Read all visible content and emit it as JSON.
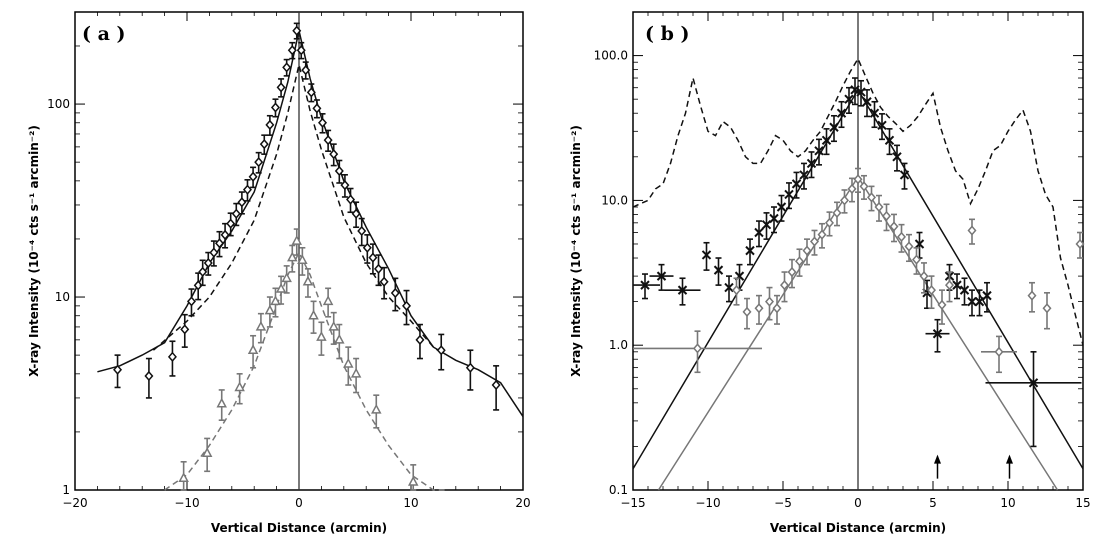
{
  "chart_data": [
    {
      "type": "scatter",
      "panel_label": "( a )",
      "xlabel": "Vertical Distance (arcmin)",
      "ylabel": "X-ray Intensity (10⁻⁴ cts s⁻¹ arcmin⁻²)",
      "xlim": [
        -20,
        20
      ],
      "ylim": [
        1,
        300
      ],
      "yscale": "log",
      "xticks": [
        -20,
        -10,
        0,
        10,
        20
      ],
      "yticks": [
        1,
        10,
        100
      ],
      "vline_x": 0,
      "series": [
        {
          "marker": "diamond",
          "color": "#111111",
          "x": [
            -16.2,
            -13.4,
            -11.3,
            -10.2,
            -9.6,
            -9.0,
            -8.6,
            -8.1,
            -7.6,
            -7.1,
            -6.6,
            -6.1,
            -5.6,
            -5.1,
            -4.6,
            -4.1,
            -3.6,
            -3.1,
            -2.6,
            -2.1,
            -1.6,
            -1.1,
            -0.6,
            -0.2,
            0.2,
            0.6,
            1.1,
            1.6,
            2.1,
            2.6,
            3.1,
            3.6,
            4.1,
            4.6,
            5.1,
            5.6,
            6.1,
            6.6,
            7.1,
            7.6,
            8.6,
            9.6,
            10.8,
            12.7,
            15.3,
            17.6
          ],
          "y": [
            4.2,
            3.9,
            4.9,
            6.8,
            9.5,
            11.5,
            13.5,
            15.0,
            17.0,
            19.0,
            21.0,
            24.0,
            27.0,
            31.0,
            36.0,
            42.0,
            50.0,
            62.0,
            78.0,
            96.0,
            122.0,
            155.0,
            190.0,
            240.0,
            190.0,
            150.0,
            115.0,
            95.0,
            80.0,
            65.0,
            55.0,
            45.0,
            38.0,
            32.0,
            27.0,
            22.0,
            18.0,
            16.0,
            14.0,
            12.0,
            10.5,
            9.0,
            6.0,
            5.3,
            4.3,
            3.5
          ],
          "err": [
            0.8,
            0.9,
            1.0,
            1.3,
            1.5,
            1.8,
            2.0,
            2.0,
            2.5,
            2.8,
            3.0,
            3.2,
            3.5,
            4.0,
            4.5,
            5.0,
            6.0,
            7.0,
            9.0,
            10.0,
            13.0,
            15.0,
            18.0,
            22.0,
            18.0,
            15.0,
            12.0,
            10.0,
            9.0,
            8.0,
            7.0,
            6.0,
            5.0,
            4.5,
            4.0,
            3.5,
            3.0,
            2.8,
            2.5,
            2.2,
            2.0,
            1.8,
            1.2,
            1.1,
            1.0,
            0.9
          ]
        },
        {
          "marker": "triangle",
          "color": "#777777",
          "x": [
            -10.3,
            -8.2,
            -6.9,
            -5.3,
            -4.1,
            -3.4,
            -2.6,
            -2.1,
            -1.6,
            -1.1,
            -0.6,
            -0.2,
            0.3,
            0.8,
            1.3,
            2.0,
            2.6,
            3.1,
            3.6,
            4.4,
            5.1,
            6.9,
            10.2
          ],
          "y": [
            1.15,
            1.55,
            2.8,
            3.4,
            5.3,
            7.0,
            8.5,
            9.5,
            11.0,
            12.5,
            16.0,
            19.5,
            15.5,
            12.0,
            8.0,
            6.2,
            9.5,
            7.0,
            6.0,
            4.5,
            4.0,
            2.6,
            1.1
          ],
          "err": [
            0.25,
            0.3,
            0.5,
            0.6,
            1.0,
            1.2,
            1.5,
            1.6,
            1.8,
            2.0,
            2.5,
            3.0,
            2.5,
            2.0,
            1.5,
            1.2,
            1.6,
            1.3,
            1.2,
            1.0,
            0.8,
            0.5,
            0.25
          ]
        }
      ],
      "curves": [
        {
          "style": "solid",
          "color": "#111111",
          "x": [
            -18,
            -16,
            -14,
            -12,
            -10,
            -8,
            -6,
            -4,
            -2,
            -1,
            0,
            1,
            2,
            4,
            6,
            8,
            10,
            12,
            14,
            16,
            18,
            20
          ],
          "y": [
            4.1,
            4.4,
            5.0,
            5.8,
            9.0,
            15.0,
            22.0,
            35.0,
            80.0,
            130.0,
            240.0,
            135.0,
            85.0,
            40.0,
            23.0,
            14.0,
            8.0,
            5.5,
            4.7,
            4.2,
            3.6,
            2.4
          ]
        },
        {
          "style": "dashed",
          "color": "#111111",
          "x": [
            -13,
            -10,
            -8,
            -6,
            -4,
            -2,
            -1,
            0,
            1,
            2,
            4,
            6,
            8,
            10,
            12,
            13
          ],
          "y": [
            5.3,
            7.5,
            10.0,
            15.0,
            25.0,
            55.0,
            90.0,
            160.0,
            92.0,
            58.0,
            26.0,
            15.0,
            10.0,
            7.5,
            5.5,
            5.0
          ]
        },
        {
          "style": "dashed",
          "color": "#777777",
          "x": [
            -12,
            -10,
            -8,
            -6,
            -4,
            -2,
            -1,
            0,
            1,
            2,
            4,
            6,
            8,
            10,
            12,
            13
          ],
          "y": [
            0.95,
            1.2,
            1.7,
            2.6,
            4.4,
            9.0,
            13.0,
            17.0,
            13.0,
            9.0,
            4.4,
            2.6,
            1.7,
            1.2,
            1.0,
            0.9
          ]
        }
      ]
    },
    {
      "type": "scatter",
      "panel_label": "( b )",
      "xlabel": "Vertical Distance (arcmin)",
      "ylabel": "X-ray Intensity (10⁻⁴ cts s⁻¹ arcmin⁻²)",
      "xlim": [
        -15,
        15
      ],
      "ylim": [
        0.1,
        200
      ],
      "yscale": "log",
      "xticks": [
        -15,
        -10,
        -5,
        0,
        5,
        10,
        15
      ],
      "yticks": [
        0.1,
        1.0,
        10.0,
        100.0
      ],
      "ytick_labels": [
        "0.1",
        "1.0",
        "10.0",
        "100.0"
      ],
      "vline_x": 0,
      "series": [
        {
          "marker": "x",
          "color": "#111111",
          "x": [
            -14.2,
            -13.1,
            -11.7,
            -10.1,
            -9.3,
            -8.6,
            -7.9,
            -7.2,
            -6.6,
            -6.1,
            -5.6,
            -5.1,
            -4.6,
            -4.1,
            -3.6,
            -3.1,
            -2.6,
            -2.1,
            -1.6,
            -1.1,
            -0.6,
            -0.2,
            0.2,
            0.6,
            1.1,
            1.6,
            2.1,
            2.6,
            3.1,
            4.1,
            4.6,
            5.3,
            6.1,
            6.6,
            7.1,
            7.6,
            8.1,
            8.6,
            11.7
          ],
          "y": [
            2.6,
            3.0,
            2.4,
            4.2,
            3.3,
            2.5,
            3.0,
            4.5,
            6.0,
            6.8,
            7.5,
            9.0,
            11.0,
            13.0,
            15.0,
            18.0,
            22.0,
            26.0,
            32.0,
            40.0,
            50.0,
            58.0,
            56.0,
            48.0,
            40.0,
            33.0,
            26.0,
            20.0,
            15.0,
            5.0,
            2.3,
            1.2,
            3.0,
            2.6,
            2.4,
            2.0,
            2.0,
            2.2,
            0.55
          ],
          "err": [
            0.5,
            0.6,
            0.5,
            0.9,
            0.7,
            0.5,
            0.6,
            0.9,
            1.2,
            1.4,
            1.5,
            1.8,
            2.2,
            2.6,
            3.0,
            3.6,
            4.4,
            5.2,
            6.4,
            8.0,
            10.0,
            12.0,
            11.0,
            10.0,
            8.0,
            6.6,
            5.2,
            4.0,
            3.0,
            1.0,
            0.5,
            0.3,
            0.6,
            0.5,
            0.5,
            0.4,
            0.4,
            0.5,
            0.35
          ],
          "xerr": [
            1.0,
            0.8,
            1.2,
            0,
            0,
            0,
            0,
            0,
            0,
            0,
            0,
            0,
            0,
            0,
            0,
            0,
            0,
            0,
            0,
            0,
            0,
            0,
            0,
            0,
            0,
            0,
            0,
            0,
            0,
            0,
            0,
            0.8,
            0,
            0,
            0,
            0,
            0,
            0,
            3.2
          ]
        },
        {
          "marker": "diamond",
          "color": "#777777",
          "x": [
            -10.7,
            -8.1,
            -7.4,
            -6.6,
            -5.9,
            -5.4,
            -4.9,
            -4.4,
            -3.9,
            -3.4,
            -2.9,
            -2.4,
            -1.9,
            -1.4,
            -0.9,
            -0.4,
            0.0,
            0.4,
            0.9,
            1.4,
            1.9,
            2.4,
            2.9,
            3.4,
            3.9,
            4.4,
            4.9,
            5.6,
            6.1,
            7.6,
            9.4,
            11.6,
            12.6,
            14.8
          ],
          "y": [
            0.95,
            2.4,
            1.7,
            1.8,
            2.0,
            1.8,
            2.6,
            3.2,
            3.8,
            4.5,
            5.2,
            5.8,
            7.0,
            8.2,
            10.0,
            12.0,
            14.0,
            12.5,
            10.5,
            9.0,
            7.8,
            6.6,
            5.6,
            4.8,
            3.9,
            3.0,
            2.4,
            1.9,
            2.6,
            6.2,
            0.9,
            2.2,
            1.8,
            5.0
          ],
          "err": [
            0.3,
            0.5,
            0.4,
            0.4,
            0.5,
            0.4,
            0.6,
            0.7,
            0.8,
            0.9,
            1.0,
            1.1,
            1.3,
            1.5,
            1.8,
            2.2,
            2.6,
            2.3,
            2.0,
            1.8,
            1.6,
            1.4,
            1.2,
            1.0,
            0.8,
            0.7,
            0.6,
            0.5,
            0.6,
            1.2,
            0.25,
            0.5,
            0.5,
            1.0
          ],
          "xerr": [
            4.3,
            0,
            0,
            0,
            0,
            0,
            0,
            0,
            0,
            0,
            0,
            0,
            0,
            0,
            0,
            0,
            0,
            0,
            0,
            0,
            0,
            0,
            0,
            0,
            0,
            0,
            0,
            0,
            0,
            0,
            1.2,
            0,
            0,
            0
          ]
        }
      ],
      "curves": [
        {
          "style": "solid",
          "color": "#111111",
          "x": [
            -15,
            0,
            15
          ],
          "y": [
            0.14,
            58.0,
            0.14
          ]
        },
        {
          "style": "solid",
          "color": "#777777",
          "x": [
            -13.3,
            0,
            13.3
          ],
          "y": [
            0.1,
            14.5,
            0.1
          ]
        },
        {
          "style": "dashed",
          "color": "#111111",
          "x": [
            -15,
            -14,
            -13.5,
            -13,
            -12.5,
            -12,
            -11.5,
            -11,
            -10.5,
            -10,
            -9.5,
            -9,
            -8.5,
            -8,
            -7.5,
            -7,
            -6.5,
            -6,
            -5.5,
            -5,
            -4.5,
            -4,
            -3.5,
            -3,
            -2.5,
            -2,
            -1.5,
            -1,
            -0.5,
            0,
            0.5,
            1,
            1.5,
            2,
            2.5,
            3,
            3.5,
            4,
            4.5,
            5,
            5.5,
            6,
            6.5,
            7,
            7.5,
            8,
            8.5,
            9,
            9.5,
            10,
            10.5,
            11,
            11.5,
            12,
            12.5,
            13,
            13.5,
            14,
            14.5,
            15
          ],
          "y": [
            9.0,
            10.0,
            12.0,
            13.0,
            18.0,
            28.0,
            40.0,
            70.0,
            45.0,
            30.0,
            28.0,
            35.0,
            32.0,
            26.0,
            20.0,
            18.0,
            18.0,
            22.0,
            28.0,
            26.0,
            22.0,
            20.0,
            22.0,
            26.0,
            30.0,
            38.0,
            48.0,
            62.0,
            78.0,
            95.0,
            72.0,
            55.0,
            44.0,
            38.0,
            34.0,
            30.0,
            33.0,
            38.0,
            46.0,
            55.0,
            32.0,
            22.0,
            16.0,
            14.0,
            9.5,
            12.0,
            16.0,
            22.0,
            24.0,
            30.0,
            36.0,
            42.0,
            30.0,
            16.0,
            11.0,
            9.0,
            4.0,
            2.6,
            1.6,
            1.0
          ]
        }
      ],
      "arrows": [
        {
          "x": 5.3,
          "y_tip": 0.17
        },
        {
          "x": 10.1,
          "y_tip": 0.17
        }
      ]
    }
  ]
}
